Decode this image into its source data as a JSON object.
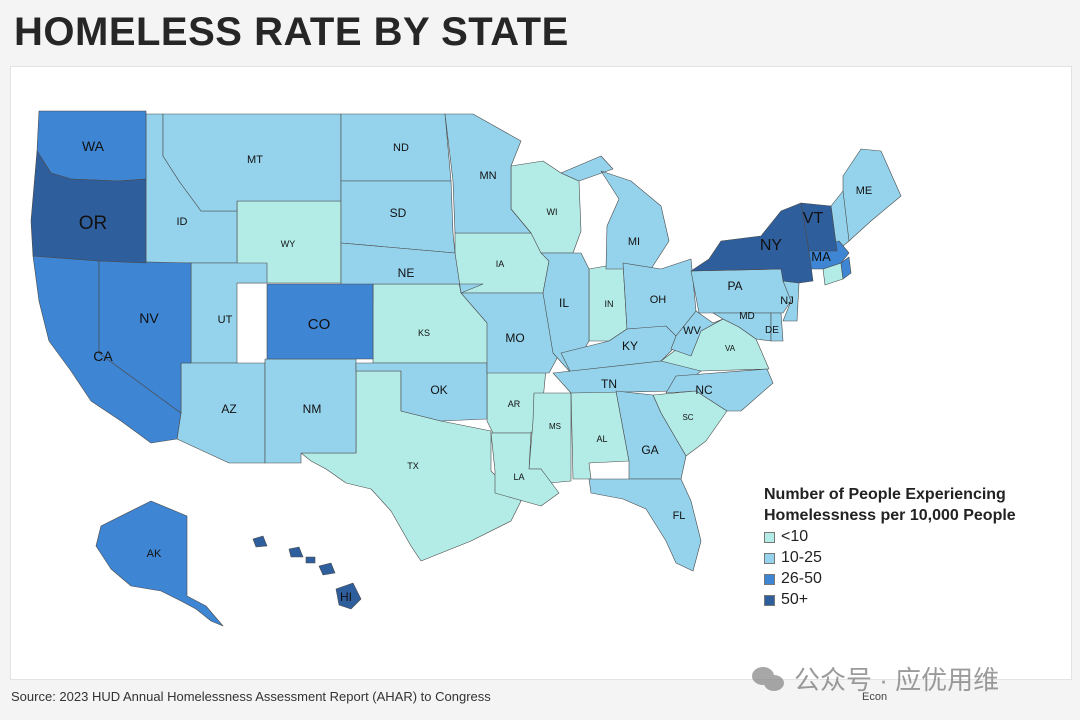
{
  "title": "HOMELESS RATE BY STATE",
  "legend": {
    "title_line1": "Number of People Experiencing",
    "title_line2": "Homelessness per 10,000 People",
    "items": [
      {
        "label": "<10",
        "color": "#b3ebe6"
      },
      {
        "label": "10-25",
        "color": "#95d3ec"
      },
      {
        "label": "26-50",
        "color": "#3e85d3"
      },
      {
        "label": "50+",
        "color": "#2f5e9c"
      }
    ]
  },
  "states": {
    "WA": "WA",
    "OR": "OR",
    "CA": "CA",
    "NV": "NV",
    "ID": "ID",
    "MT": "MT",
    "WY": "WY",
    "UT": "UT",
    "AZ": "AZ",
    "CO": "CO",
    "NM": "NM",
    "ND": "ND",
    "SD": "SD",
    "NE": "NE",
    "KS": "KS",
    "OK": "OK",
    "TX": "TX",
    "MN": "MN",
    "IA": "IA",
    "MO": "MO",
    "AR": "AR",
    "LA": "LA",
    "WI": "WI",
    "IL": "IL",
    "MI": "MI",
    "IN": "IN",
    "OH": "OH",
    "KY": "KY",
    "TN": "TN",
    "MS": "MS",
    "AL": "AL",
    "GA": "GA",
    "FL": "FL",
    "SC": "SC",
    "NC": "NC",
    "VA": "VA",
    "WV": "WV",
    "PA": "PA",
    "NY": "NY",
    "VT": "VT",
    "ME": "ME",
    "MA": "MA",
    "NJ": "NJ",
    "MD": "MD",
    "DE": "DE",
    "AK": "AK",
    "HI": "HI"
  },
  "source": "Source: 2023 HUD Annual Homelessness Assessment Report (AHAR) to Congress",
  "credit": "Econ",
  "watermark": "公众号 · 应优用维"
}
